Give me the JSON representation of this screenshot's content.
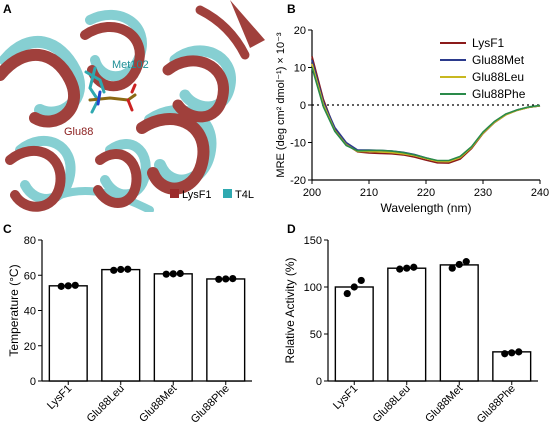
{
  "panels": {
    "a": {
      "letter": "A",
      "labels": {
        "met": "Met102",
        "glu": "Glu88"
      },
      "legend": [
        {
          "name": "LysF1",
          "color": "#9b2a2a"
        },
        {
          "name": "T4L",
          "color": "#2fa9b0"
        }
      ],
      "colors": {
        "lysf1": "#a0403c",
        "t4l": "#86cfd2",
        "background": "#ffffff"
      }
    },
    "b": {
      "letter": "B"
    },
    "c": {
      "letter": "C"
    },
    "d": {
      "letter": "D"
    }
  },
  "chart_data": [
    {
      "panel": "B",
      "type": "line",
      "xlabel": "Wavelength (nm)",
      "ylabel": "MRE (deg cm² dmol⁻¹) × 10⁻³",
      "xlim": [
        200,
        240
      ],
      "ylim": [
        -20,
        20
      ],
      "xticks": [
        "200",
        "210",
        "220",
        "230",
        "240"
      ],
      "yticks": [
        "-20",
        "-10",
        "0",
        "10",
        "20"
      ],
      "reference_line": {
        "y": 0,
        "style": "dotted"
      },
      "legend_position": "top-right",
      "x": [
        200,
        202,
        204,
        206,
        208,
        210,
        212,
        214,
        216,
        218,
        220,
        222,
        224,
        226,
        228,
        230,
        232,
        234,
        236,
        238,
        240
      ],
      "series": [
        {
          "name": "LysF1",
          "color": "#8b1a1a",
          "values": [
            13,
            1.5,
            -6.5,
            -10.5,
            -12.5,
            -12.8,
            -12.9,
            -13.0,
            -13.3,
            -13.9,
            -14.7,
            -15.4,
            -15.5,
            -14.4,
            -11.6,
            -7.6,
            -4.7,
            -2.6,
            -1.4,
            -0.6,
            -0.2
          ]
        },
        {
          "name": "Glu88Met",
          "color": "#2b3a8c",
          "values": [
            12,
            0.8,
            -6.0,
            -10.0,
            -12.0,
            -12.0,
            -12.1,
            -12.3,
            -12.6,
            -13.2,
            -14.1,
            -14.9,
            -15.0,
            -13.9,
            -11.2,
            -7.3,
            -4.5,
            -2.5,
            -1.3,
            -0.6,
            -0.2
          ]
        },
        {
          "name": "Glu88Leu",
          "color": "#c8b820",
          "values": [
            11,
            0.2,
            -6.8,
            -10.6,
            -12.4,
            -12.4,
            -12.5,
            -12.7,
            -13.0,
            -13.5,
            -14.3,
            -15.0,
            -15.1,
            -14.0,
            -11.3,
            -7.5,
            -4.6,
            -2.6,
            -1.4,
            -0.6,
            -0.2
          ]
        },
        {
          "name": "Glu88Phe",
          "color": "#2a8a4a",
          "values": [
            10,
            -0.5,
            -7.0,
            -10.8,
            -12.2,
            -12.1,
            -12.1,
            -12.3,
            -12.7,
            -13.3,
            -14.1,
            -14.8,
            -14.8,
            -13.7,
            -11.1,
            -7.2,
            -4.4,
            -2.4,
            -1.3,
            -0.5,
            -0.1
          ]
        }
      ]
    },
    {
      "panel": "C",
      "type": "bar",
      "ylabel": "Temperature (°C)",
      "ylim": [
        0,
        80
      ],
      "yticks": [
        "0",
        "20",
        "40",
        "60",
        "80"
      ],
      "categories": [
        "LysF1",
        "Glu88Leu",
        "Glu88Met",
        "Glu88Phe"
      ],
      "values": [
        54.0,
        63.2,
        60.8,
        57.9
      ],
      "points": [
        [
          53.7,
          54.0,
          54.3
        ],
        [
          62.8,
          63.3,
          63.4
        ],
        [
          60.6,
          60.8,
          61.0
        ],
        [
          57.7,
          57.9,
          58.1
        ]
      ]
    },
    {
      "panel": "D",
      "type": "bar",
      "ylabel": "Relative  Activity  (%)",
      "ylim": [
        0,
        150
      ],
      "yticks": [
        "0",
        "50",
        "100",
        "150"
      ],
      "categories": [
        "LysF1",
        "Glu88Leu",
        "Glu88Met",
        "Glu88Phe"
      ],
      "values": [
        100,
        120,
        123.5,
        31
      ],
      "points": [
        [
          93,
          100,
          107
        ],
        [
          119,
          120,
          121
        ],
        [
          120,
          124,
          127
        ],
        [
          29,
          30,
          31
        ]
      ]
    }
  ]
}
